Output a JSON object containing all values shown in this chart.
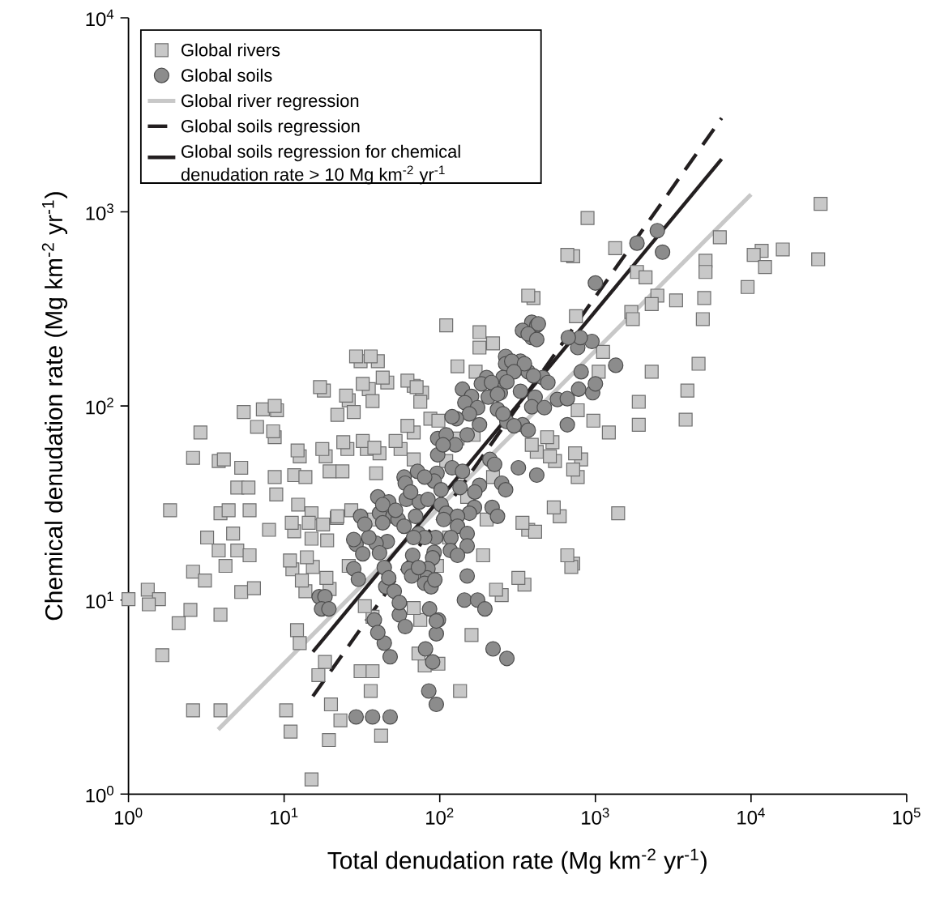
{
  "chart_data": {
    "type": "scatter",
    "xlabel": "Total denudation rate (Mg km$^{-2}$ yr$^{-1}$)",
    "ylabel": "Chemical denudation rate (Mg km$^{-2}$ yr$^{-1}$)",
    "log": "xy",
    "xlim": [
      1,
      100000
    ],
    "ylim": [
      1,
      10000
    ],
    "xticks": [
      {
        "value": 1,
        "label": "10$^{0}$"
      },
      {
        "value": 10,
        "label": "10$^{1}$"
      },
      {
        "value": 100,
        "label": "10$^{2}$"
      },
      {
        "value": 1000,
        "label": "10$^{3}$"
      },
      {
        "value": 10000,
        "label": "10$^{4}$"
      },
      {
        "value": 100000,
        "label": "10$^{5}$"
      }
    ],
    "yticks": [
      {
        "value": 1,
        "label": "10$^{0}$"
      },
      {
        "value": 10,
        "label": "10$^{1}$"
      },
      {
        "value": 100,
        "label": "10$^{2}$"
      },
      {
        "value": 1000,
        "label": "10$^{3}$"
      },
      {
        "value": 10000,
        "label": "10$^{4}$"
      }
    ],
    "grid": false,
    "legend": "top left",
    "series": [
      {
        "name": "Global rivers",
        "marker": "square",
        "color": "#c8c8c8",
        "x": [
          31,
          40,
          18,
          35,
          46,
          68,
          77,
          26,
          28,
          5.5,
          7.3,
          9,
          6.7,
          8.7,
          2.9,
          2.6,
          3.8,
          4.1,
          5.3,
          5,
          5.9,
          1.85,
          3.9,
          4.4,
          6,
          8,
          3.2,
          4.7,
          3.8,
          5,
          6,
          4.2,
          2.6,
          3.1,
          1.33,
          1.57,
          1.35,
          1.0,
          2.5,
          2.1,
          3.9,
          1.65,
          2.6,
          3.9,
          5.3,
          6.4,
          11.3,
          13.7,
          15.3,
          19.6,
          11.6,
          15,
          18.9,
          12.3,
          15,
          17.8,
          21.8,
          27,
          12.6,
          18.5,
          8.7,
          8.9,
          11.6,
          13.7,
          19.6,
          23.7,
          25.5,
          34,
          41,
          56,
          68,
          68,
          39,
          12.1,
          12.6,
          18.3,
          16.6,
          10.3,
          11,
          31,
          37,
          36,
          20,
          23,
          19.4,
          15,
          42,
          75,
          37,
          80,
          28000,
          27000,
          16000,
          11700,
          10400,
          12300,
          9500,
          6300,
          5100,
          5100,
          5000,
          4900,
          3300,
          2500,
          2300,
          1700,
          1740,
          890,
          720,
          1340,
          1850,
          2100,
          400,
          750,
          1120,
          1050,
          4600,
          2300,
          3900,
          1900,
          3800,
          1900,
          970,
          1220,
          770,
          530,
          810,
          550,
          770,
          420,
          1400,
          590,
          370,
          410,
          720,
          700,
          350,
          250,
          660,
          370,
          110,
          180,
          180,
          220,
          29,
          36,
          17,
          32,
          43,
          62,
          71,
          75,
          130,
          170,
          25,
          37,
          22,
          62,
          24,
          32,
          52,
          38,
          12.2,
          17.6,
          8.5,
          8.7,
          490,
          510,
          390,
          720,
          740,
          540,
          340,
          200,
          190,
          320,
          230,
          160,
          660,
          98,
          135,
          68,
          36,
          22,
          14.4,
          11.2,
          18.7,
          13,
          10.9,
          14,
          26,
          33,
          73,
          115,
          96,
          150,
          220,
          110,
          130,
          165,
          87,
          98
        ],
        "values": [
          170,
          170,
          120,
          122,
          132,
          127,
          117,
          107,
          93,
          93,
          96,
          95,
          78,
          69,
          73,
          54,
          52,
          53,
          48,
          38,
          38,
          29,
          28,
          29,
          29,
          23,
          21,
          22,
          18,
          18,
          17,
          15,
          14,
          12.6,
          11.3,
          10.1,
          9.5,
          10.1,
          8.9,
          7.6,
          8.4,
          5.2,
          2.7,
          2.7,
          11,
          11.5,
          14.4,
          11.1,
          14.8,
          11.4,
          22.6,
          20.7,
          20.3,
          31,
          28,
          24.5,
          26.5,
          29,
          55,
          55,
          43,
          35,
          44,
          43,
          46,
          46,
          60,
          60,
          57,
          60,
          73,
          53,
          45,
          7,
          6,
          4.8,
          4.1,
          2.7,
          2.1,
          4.3,
          4.3,
          3.4,
          2.9,
          2.4,
          1.9,
          1.19,
          2,
          7.9,
          8.2,
          4.6,
          1100,
          570,
          640,
          630,
          600,
          520,
          410,
          740,
          560,
          490,
          360,
          280,
          350,
          370,
          335,
          305,
          280,
          930,
          590,
          650,
          490,
          460,
          360,
          290,
          190,
          150,
          165,
          150,
          120,
          105,
          85,
          80,
          84,
          73,
          95,
          65,
          53,
          52,
          43,
          58,
          28,
          27,
          23,
          22.5,
          15.4,
          14.8,
          12,
          10.6,
          600,
          370,
          260,
          240,
          200,
          210,
          180,
          180,
          125,
          130,
          140,
          135,
          125,
          105,
          160,
          150,
          113,
          106,
          90,
          79,
          65,
          66,
          66,
          61,
          59,
          60,
          74,
          100,
          69,
          55,
          63,
          47,
          57,
          30,
          25,
          26,
          17,
          13,
          11.3,
          6.6,
          17,
          4.7,
          3.4,
          9.1,
          26,
          27,
          25,
          25,
          13,
          12.6,
          16,
          16.6,
          15,
          9.3,
          5.3,
          21,
          15,
          34,
          43,
          52,
          68,
          71,
          86,
          84
        ]
      },
      {
        "name": "Global soils",
        "marker": "circle",
        "color": "#8c8c8c",
        "x": [
          390,
          340,
          420,
          390,
          265,
          265,
          330,
          370,
          255,
          460,
          200,
          185,
          140,
          205,
          245,
          160,
          145,
          175,
          155,
          235,
          270,
          340,
          180,
          128,
          120,
          97,
          110,
          150,
          126,
          97,
          120,
          210,
          140,
          180,
          250,
          168,
          135,
          96,
          92,
          72,
          59,
          60,
          40,
          47,
          61,
          74,
          84,
          102,
          167,
          217,
          110,
          155,
          130,
          31,
          41,
          50,
          43,
          54,
          70,
          106,
          130,
          150,
          59,
          73,
          94,
          118,
          80,
          46,
          39,
          29,
          35,
          28,
          150,
          117,
          68,
          92,
          130,
          67,
          90,
          28,
          44,
          84,
          63,
          66,
          83,
          80,
          88,
          45,
          51,
          16.8,
          18.3,
          150,
          144,
          175,
          195,
          86,
          98,
          95,
          55,
          38,
          44,
          81,
          220,
          270,
          85,
          29,
          37,
          48,
          95,
          90,
          48,
          40,
          60,
          95,
          17.4,
          19.4,
          30,
          33,
          43,
          52,
          2500,
          1850,
          2700,
          1000,
          1350,
          430,
          370,
          420,
          770,
          950,
          800,
          670,
          290,
          350,
          300,
          215,
          270,
          400,
          495,
          810,
          780,
          960,
          1000,
          330,
          235,
          410,
          570,
          660,
          390,
          470,
          255,
          300,
          370,
          660,
          225,
          320,
          420,
          265,
          235,
          105,
          102,
          80,
          65,
          32,
          41,
          47,
          55,
          93,
          73
        ],
        "values": [
          270,
          245,
          260,
          225,
          180,
          165,
          170,
          150,
          140,
          140,
          140,
          130,
          122,
          111,
          117,
          112,
          104,
          98,
          91,
          96,
          83,
          80,
          80,
          86,
          88,
          68,
          71,
          71,
          63,
          56,
          48,
          53,
          46,
          39,
          40,
          36,
          38,
          45,
          41,
          46,
          43,
          40,
          34,
          32,
          33,
          32,
          33,
          31,
          30,
          30,
          28,
          28,
          27,
          27,
          28,
          27,
          25,
          26,
          27,
          26,
          24,
          22,
          24,
          22,
          21,
          21,
          21,
          20,
          19.6,
          19.4,
          21,
          20.5,
          19,
          18,
          21,
          17.6,
          17,
          17,
          16.5,
          14.5,
          14.7,
          14.5,
          14.5,
          13.3,
          13,
          12.2,
          11.7,
          11.7,
          11.1,
          10.4,
          10.4,
          13.3,
          10,
          10,
          9,
          9,
          7.9,
          6.7,
          8.4,
          7.9,
          6,
          5.6,
          5.6,
          5,
          3.4,
          2.5,
          2.5,
          2.5,
          2.9,
          4.8,
          5.1,
          6.8,
          7.3,
          7.8,
          9,
          9,
          12.8,
          24.6,
          31,
          29,
          800,
          690,
          620,
          430,
          162,
          265,
          235,
          220,
          200,
          215,
          225,
          225,
          170,
          165,
          150,
          132,
          133,
          143,
          132,
          150,
          122,
          117,
          130,
          119,
          115,
          111,
          108,
          109,
          99,
          98,
          91,
          79,
          75,
          80,
          50,
          48,
          44,
          37,
          27,
          63,
          37,
          43,
          36,
          17.3,
          17.5,
          13,
          9.7,
          12.7,
          14.7
        ]
      },
      {
        "name": "Global river regression",
        "type": "line",
        "line_style": "solid",
        "color": "#c8c8c8",
        "x": [
          3.77,
          10000
        ],
        "values": [
          2.15,
          1230
        ]
      },
      {
        "name": "Global soils regression",
        "type": "line",
        "line_style": "dashed",
        "color": "#231f20",
        "x": [
          15.3,
          6470
        ],
        "values": [
          3.19,
          3040
        ]
      },
      {
        "name": "Global soils regression for chemical denudation rate > 10 Mg km$^{-2}$ yr$^{-1}$",
        "type": "line",
        "line_style": "solid",
        "color": "#231f20",
        "x": [
          15.3,
          6470
        ],
        "values": [
          5.41,
          1870
        ]
      }
    ]
  }
}
